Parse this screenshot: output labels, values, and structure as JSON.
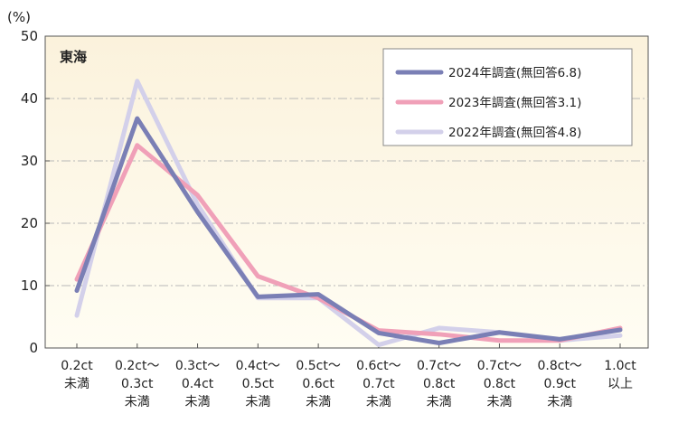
{
  "chart_data": {
    "type": "line",
    "title": "東海",
    "y_unit_label": "(%)",
    "ylim": [
      0,
      50
    ],
    "yticks": [
      "0",
      "10",
      "20",
      "30",
      "40",
      "50"
    ],
    "grid": true,
    "legend_position": "top-right",
    "categories": [
      [
        "0.2ct",
        "未満"
      ],
      [
        "0.2ct〜",
        "0.3ct",
        "未満"
      ],
      [
        "0.3ct〜",
        "0.4ct",
        "未満"
      ],
      [
        "0.4ct〜",
        "0.5ct",
        "未満"
      ],
      [
        "0.5ct〜",
        "0.6ct",
        "未満"
      ],
      [
        "0.6ct〜",
        "0.7ct",
        "未満"
      ],
      [
        "0.7ct〜",
        "0.8ct",
        "未満"
      ],
      [
        "0.7ct〜",
        "0.8ct",
        "未満"
      ],
      [
        "0.8ct〜",
        "0.9ct",
        "未満"
      ],
      [
        "1.0ct",
        "以上"
      ]
    ],
    "series": [
      {
        "name": "2022年調査(無回答4.8)",
        "color": "#d3d0ea",
        "values": [
          5.2,
          42.8,
          23.0,
          8.0,
          8.0,
          0.5,
          3.2,
          2.5,
          1.2,
          2.0
        ]
      },
      {
        "name": "2023年調査(無回答3.1)",
        "color": "#f0a0b8",
        "values": [
          11.0,
          32.5,
          24.5,
          11.5,
          8.0,
          2.8,
          2.2,
          1.2,
          1.2,
          3.2
        ]
      },
      {
        "name": "2024年調査(無回答6.8)",
        "color": "#7a7fb5",
        "values": [
          9.2,
          36.8,
          21.8,
          8.2,
          8.6,
          2.4,
          0.8,
          2.5,
          1.4,
          2.9
        ]
      }
    ],
    "legend_order": [
      2,
      1,
      0
    ]
  }
}
